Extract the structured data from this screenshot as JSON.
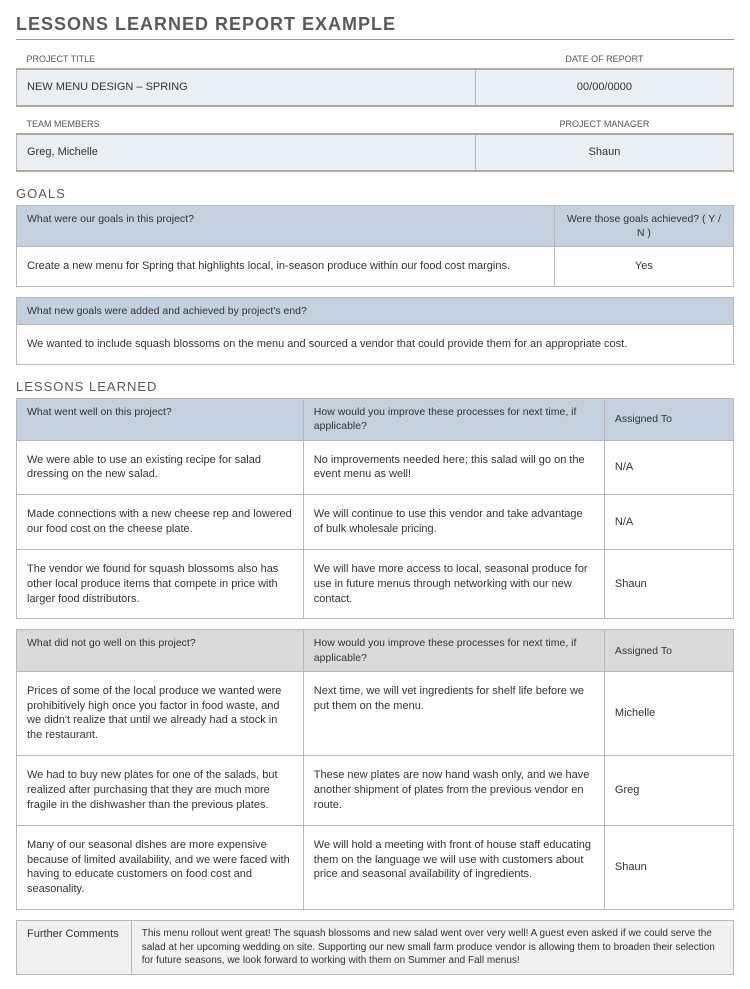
{
  "title": "LESSONS LEARNED REPORT EXAMPLE",
  "meta": {
    "project_title_label": "PROJECT TITLE",
    "project_title": "NEW MENU DESIGN – SPRING",
    "date_label": "DATE OF REPORT",
    "date": "00/00/0000",
    "team_label": "TEAM MEMBERS",
    "team": "Greg, Michelle",
    "pm_label": "PROJECT MANAGER",
    "pm": "Shaun"
  },
  "goals": {
    "heading": "GOALS",
    "q1": "What were our goals in this project?",
    "q1_ach_label": "Were those goals achieved?   ( Y / N )",
    "q1_answer": "Create a new menu for Spring that highlights local, in-season produce within our food cost margins.",
    "q1_ach": "Yes",
    "q2": "What new goals were added and achieved by project's end?",
    "q2_answer": "We wanted to include squash blossoms on the menu and sourced a vendor that could provide them for an appropriate cost."
  },
  "lessons": {
    "heading": "LESSONS LEARNED",
    "well_header": "What went well on this project?",
    "improve_header": "How would you improve these processes for next time, if applicable?",
    "assigned_header": "Assigned To",
    "well_rows": [
      {
        "a": "We were able to use an existing recipe for salad dressing on the new salad.",
        "b": "No improvements needed here; this salad will go on the event menu as well!",
        "c": "N/A"
      },
      {
        "a": "Made connections with a new cheese rep and lowered our food cost on the cheese plate.",
        "b": "We will continue to use this vendor and take advantage of bulk wholesale pricing.",
        "c": "N/A"
      },
      {
        "a": "The vendor we found for squash blossoms also has other local produce items that compete in price with larger food distributors.",
        "b": "We will have more access to local, seasonal produce for use in future menus through networking with our new contact.",
        "c": "Shaun"
      }
    ],
    "bad_header": "What did not go well on this project?",
    "bad_rows": [
      {
        "a": "Prices of some of the local produce we wanted were prohibitively high once you factor in food waste, and we didn't realize that until we already had a stock in the restaurant.",
        "b": "Next time, we will vet ingredients for shelf life before we put them on the menu.",
        "c": "Michelle"
      },
      {
        "a": "We had to buy new plates for one of the salads, but realized after purchasing that they are much more fragile in the dishwasher than the previous plates.",
        "b": "These new plates are now hand wash only, and we have another shipment of plates from the previous vendor en route.",
        "c": "Greg"
      },
      {
        "a": "Many of our seasonal dishes are more expensive because of limited availability, and we were faced with having to educate customers on food cost and seasonality.",
        "b": "We will hold a meeting with front of house staff educating them on the language we will use with customers about price and seasonal availability of ingredients.",
        "c": "Shaun"
      }
    ]
  },
  "further": {
    "label": "Further Comments",
    "text": "This menu rollout went great! The squash blossoms and new salad went over very well! A guest even asked if we could serve the salad at her upcoming wedding on site. Supporting our new small farm produce vendor is allowing them to broaden their selection for future seasons, we look forward to working with them on Summer and Fall menus!"
  }
}
